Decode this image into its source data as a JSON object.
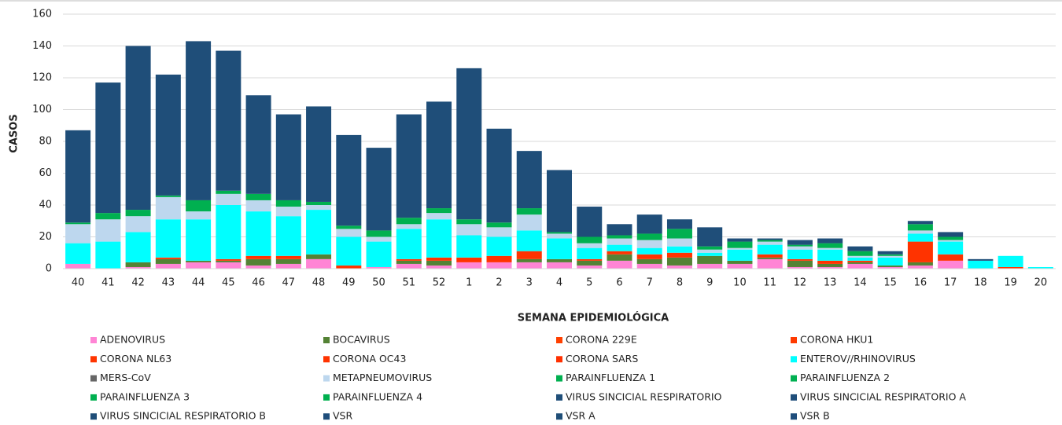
{
  "chart_data": {
    "type": "stacked_bar",
    "x_label": "SEMANA EPIDEMIOLÓGICA",
    "y_label": "CASOS",
    "categories": [
      "40",
      "41",
      "42",
      "43",
      "44",
      "45",
      "46",
      "47",
      "48",
      "49",
      "50",
      "51",
      "52",
      "1",
      "2",
      "3",
      "4",
      "5",
      "6",
      "7",
      "8",
      "9",
      "10",
      "11",
      "12",
      "13",
      "14",
      "15",
      "16",
      "17",
      "18",
      "19",
      "20"
    ],
    "ylim": [
      0,
      160
    ],
    "yticks": [
      0,
      20,
      40,
      60,
      80,
      100,
      120,
      140,
      160
    ],
    "grid": true,
    "series": [
      {
        "name": "ADENOVIRUS",
        "color": "#ff85d5",
        "values": [
          3,
          0,
          1,
          3,
          4,
          4,
          2,
          3,
          6,
          0,
          1,
          3,
          2,
          4,
          4,
          4,
          4,
          2,
          5,
          3,
          2,
          3,
          3,
          6,
          1,
          1,
          3,
          1,
          2,
          5,
          0,
          0,
          0
        ]
      },
      {
        "name": "BOCAVIRUS",
        "color": "#548235",
        "values": [
          0,
          0,
          3,
          3,
          1,
          1,
          4,
          3,
          3,
          0,
          0,
          2,
          3,
          0,
          0,
          2,
          2,
          3,
          4,
          3,
          5,
          5,
          2,
          1,
          4,
          2,
          1,
          1,
          2,
          0,
          0,
          0,
          0
        ]
      },
      {
        "name": "CORONA 229E",
        "color": "#ff4000",
        "values": [
          0,
          0,
          0,
          0,
          0,
          0,
          0,
          0,
          0,
          0,
          0,
          0,
          0,
          0,
          0,
          0,
          0,
          0,
          0,
          0,
          0,
          0,
          0,
          0,
          0,
          0,
          0,
          0,
          0,
          0,
          0,
          0,
          0
        ]
      },
      {
        "name": "CORONA HKU1",
        "color": "#ff3a00",
        "values": [
          0,
          0,
          0,
          0,
          0,
          0,
          0,
          0,
          0,
          0,
          0,
          0,
          0,
          0,
          0,
          0,
          0,
          0,
          0,
          0,
          0,
          0,
          0,
          0,
          0,
          0,
          0,
          0,
          0,
          0,
          0,
          0,
          0
        ]
      },
      {
        "name": "CORONA NL63",
        "color": "#ff3500",
        "values": [
          0,
          0,
          0,
          0,
          0,
          0,
          0,
          0,
          0,
          0,
          0,
          0,
          0,
          0,
          0,
          0,
          0,
          0,
          0,
          0,
          0,
          0,
          0,
          0,
          0,
          0,
          0,
          0,
          0,
          0,
          0,
          0,
          0
        ]
      },
      {
        "name": "CORONA OC43",
        "color": "#ff3300",
        "values": [
          0,
          0,
          0,
          1,
          0,
          1,
          2,
          2,
          0,
          2,
          0,
          1,
          2,
          3,
          4,
          5,
          0,
          1,
          2,
          3,
          3,
          0,
          0,
          2,
          1,
          2,
          1,
          0,
          13,
          4,
          0,
          1,
          0
        ]
      },
      {
        "name": "CORONA SARS",
        "color": "#ff3000",
        "values": [
          0,
          0,
          0,
          0,
          0,
          0,
          0,
          0,
          0,
          0,
          0,
          0,
          0,
          0,
          0,
          0,
          0,
          0,
          0,
          0,
          0,
          0,
          0,
          0,
          0,
          0,
          0,
          0,
          0,
          0,
          0,
          0,
          0
        ]
      },
      {
        "name": "ENTEROV//RHINOVIRUS",
        "color": "#00ffff",
        "values": [
          13,
          17,
          19,
          24,
          26,
          34,
          28,
          25,
          28,
          18,
          16,
          19,
          24,
          14,
          12,
          13,
          13,
          7,
          4,
          4,
          4,
          2,
          7,
          6,
          6,
          7,
          2,
          5,
          5,
          8,
          5,
          7,
          1
        ]
      },
      {
        "name": "MERS-CoV",
        "color": "#666666",
        "values": [
          0,
          0,
          0,
          0,
          0,
          0,
          0,
          0,
          0,
          0,
          0,
          0,
          0,
          0,
          0,
          0,
          0,
          0,
          0,
          0,
          0,
          0,
          0,
          0,
          0,
          0,
          0,
          0,
          0,
          0,
          0,
          0,
          0
        ]
      },
      {
        "name": "METAPNEUMOVIRUS",
        "color": "#bdd7ee",
        "values": [
          12,
          14,
          10,
          14,
          5,
          7,
          7,
          6,
          3,
          5,
          3,
          3,
          4,
          7,
          6,
          10,
          3,
          3,
          4,
          5,
          5,
          2,
          1,
          2,
          2,
          1,
          1,
          1,
          2,
          1,
          0,
          0,
          0
        ]
      },
      {
        "name": "PARAINFLUENZA 1",
        "color": "#00b050",
        "values": [
          0,
          0,
          0,
          0,
          0,
          0,
          0,
          0,
          0,
          0,
          0,
          0,
          0,
          0,
          0,
          0,
          0,
          0,
          0,
          0,
          0,
          0,
          0,
          0,
          0,
          0,
          0,
          0,
          0,
          0,
          0,
          0,
          0
        ]
      },
      {
        "name": "PARAINFLUENZA 2",
        "color": "#00b052",
        "values": [
          0,
          0,
          0,
          0,
          0,
          0,
          0,
          0,
          0,
          0,
          0,
          0,
          0,
          0,
          0,
          0,
          0,
          0,
          0,
          0,
          0,
          0,
          0,
          0,
          0,
          0,
          0,
          0,
          0,
          0,
          0,
          0,
          0
        ]
      },
      {
        "name": "PARAINFLUENZA 3",
        "color": "#00b050",
        "values": [
          1,
          4,
          4,
          1,
          7,
          2,
          4,
          4,
          2,
          2,
          4,
          4,
          3,
          3,
          3,
          4,
          1,
          4,
          2,
          4,
          6,
          2,
          4,
          1,
          1,
          3,
          3,
          1,
          4,
          2,
          0,
          0,
          0
        ]
      },
      {
        "name": "PARAINFLUENZA 4",
        "color": "#00b04e",
        "values": [
          0,
          0,
          0,
          0,
          0,
          0,
          0,
          0,
          0,
          0,
          0,
          0,
          0,
          0,
          0,
          0,
          0,
          0,
          0,
          0,
          0,
          0,
          0,
          0,
          0,
          0,
          0,
          0,
          0,
          0,
          0,
          0,
          0
        ]
      },
      {
        "name": "VIRUS SINCICIAL RESPIRATORIO",
        "color": "#1f4e79",
        "values": [
          58,
          82,
          103,
          76,
          100,
          88,
          62,
          54,
          60,
          57,
          52,
          65,
          67,
          95,
          59,
          36,
          39,
          19,
          7,
          12,
          6,
          12,
          2,
          1,
          3,
          3,
          3,
          2,
          2,
          3,
          1,
          0,
          0
        ]
      },
      {
        "name": "VIRUS SINCICIAL RESPIRATORIO A",
        "color": "#1f4e7a",
        "values": [
          0,
          0,
          0,
          0,
          0,
          0,
          0,
          0,
          0,
          0,
          0,
          0,
          0,
          0,
          0,
          0,
          0,
          0,
          0,
          0,
          0,
          0,
          0,
          0,
          0,
          0,
          0,
          0,
          0,
          0,
          0,
          0,
          0
        ]
      },
      {
        "name": "VIRUS SINCICIAL RESPIRATORIO B",
        "color": "#1f4e78",
        "values": [
          0,
          0,
          0,
          0,
          0,
          0,
          0,
          0,
          0,
          0,
          0,
          0,
          0,
          0,
          0,
          0,
          0,
          0,
          0,
          0,
          0,
          0,
          0,
          0,
          0,
          0,
          0,
          0,
          0,
          0,
          0,
          0,
          0
        ]
      },
      {
        "name": "VSR",
        "color": "#1f4e7b",
        "values": [
          0,
          0,
          0,
          0,
          0,
          0,
          0,
          0,
          0,
          0,
          0,
          0,
          0,
          0,
          0,
          0,
          0,
          0,
          0,
          0,
          0,
          0,
          0,
          0,
          0,
          0,
          0,
          0,
          0,
          0,
          0,
          0,
          0
        ]
      },
      {
        "name": "VSR A",
        "color": "#1f4e77",
        "values": [
          0,
          0,
          0,
          0,
          0,
          0,
          0,
          0,
          0,
          0,
          0,
          0,
          0,
          0,
          0,
          0,
          0,
          0,
          0,
          0,
          0,
          0,
          0,
          0,
          0,
          0,
          0,
          0,
          0,
          0,
          0,
          0,
          0
        ]
      },
      {
        "name": "VSR B",
        "color": "#1f4e7c",
        "values": [
          0,
          0,
          0,
          0,
          0,
          0,
          0,
          0,
          0,
          0,
          0,
          0,
          0,
          0,
          0,
          0,
          0,
          0,
          0,
          0,
          0,
          0,
          0,
          0,
          0,
          0,
          0,
          0,
          0,
          0,
          0,
          0,
          0
        ]
      }
    ]
  }
}
